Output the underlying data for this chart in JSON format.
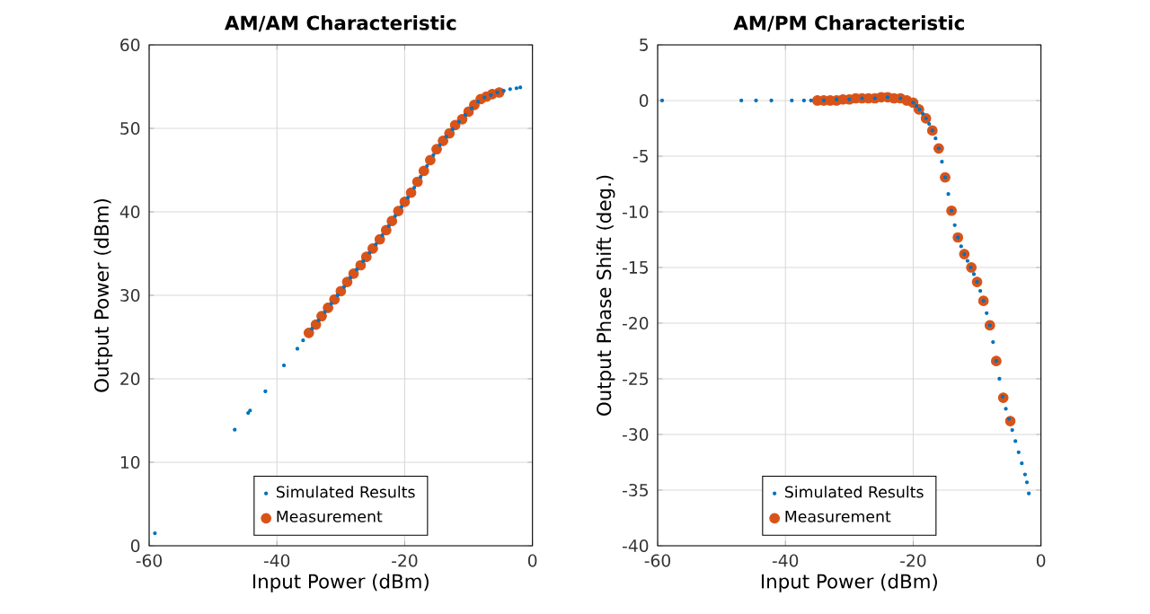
{
  "chart_data": [
    {
      "type": "scatter",
      "title": "AM/AM Characteristic",
      "xlabel": "Input Power (dBm)",
      "ylabel": "Output Power (dBm)",
      "xlim": [
        -60,
        0
      ],
      "ylim": [
        0,
        60
      ],
      "xticks": [
        -60,
        -40,
        -20,
        0
      ],
      "yticks": [
        0,
        10,
        20,
        30,
        40,
        50,
        60
      ],
      "grid": true,
      "legend": "bottom",
      "marker": "circle",
      "series": [
        {
          "name": "Simulated Results",
          "color": "#0072bd",
          "x": [
            -59.1,
            -46.6,
            -44.5,
            -44.2,
            -41.8,
            -38.9,
            -36.8,
            -35.9,
            -34.5,
            -33.5,
            -32.5,
            -31.5,
            -30.5,
            -29.5,
            -28.5,
            -27.5,
            -26.5,
            -25.5,
            -24.5,
            -23.5,
            -22.5,
            -21.5,
            -20.5,
            -19.5,
            -18.5,
            -17.5,
            -16.5,
            -15.5,
            -14.5,
            -13.5,
            -12.5,
            -11.5,
            -10.5,
            -9.5,
            -8.5,
            -7.5,
            -6.5,
            -5.5,
            -4.5,
            -3.5,
            -2.5,
            -1.9
          ],
          "values": [
            1.5,
            13.9,
            15.9,
            16.2,
            18.5,
            21.6,
            23.6,
            24.6,
            26.0,
            27.0,
            28.0,
            29.0,
            30.0,
            31.0,
            32.1,
            33.1,
            34.1,
            35.1,
            36.1,
            37.2,
            38.3,
            39.5,
            40.6,
            41.7,
            42.9,
            44.2,
            45.5,
            46.8,
            48.0,
            49.0,
            49.9,
            50.8,
            51.6,
            52.4,
            53.2,
            53.7,
            54.0,
            54.3,
            54.5,
            54.7,
            54.8,
            54.9
          ]
        },
        {
          "name": "Measurement",
          "color": "#d95319",
          "x": [
            -35.0,
            -33.9,
            -33.0,
            -32.0,
            -31.0,
            -30.0,
            -29.0,
            -28.0,
            -26.9,
            -26.0,
            -25.0,
            -23.9,
            -22.9,
            -22.0,
            -21.0,
            -20.0,
            -19.0,
            -18.0,
            -17.0,
            -16.0,
            -15.0,
            -14.0,
            -13.0,
            -12.1,
            -11.0,
            -10.0,
            -9.1,
            -8.1,
            -7.2,
            -6.3,
            -5.2
          ],
          "values": [
            25.5,
            26.5,
            27.5,
            28.5,
            29.5,
            30.5,
            31.6,
            32.6,
            33.6,
            34.6,
            35.6,
            36.7,
            37.8,
            38.9,
            40.1,
            41.2,
            42.3,
            43.6,
            44.9,
            46.2,
            47.5,
            48.5,
            49.4,
            50.4,
            51.1,
            52.0,
            52.8,
            53.5,
            53.8,
            54.1,
            54.3
          ]
        }
      ]
    },
    {
      "type": "scatter",
      "title": "AM/PM Characteristic",
      "xlabel": "Input Power (dBm)",
      "ylabel": "Output Phase Shift (deg.)",
      "xlim": [
        -60,
        0
      ],
      "ylim": [
        -40,
        5
      ],
      "xticks": [
        -60,
        -40,
        -20,
        0
      ],
      "yticks": [
        -40,
        -35,
        -30,
        -25,
        -20,
        -15,
        -10,
        -5,
        0,
        5
      ],
      "grid": true,
      "legend": "bottom",
      "marker": "circle",
      "series": [
        {
          "name": "Simulated Results",
          "color": "#0072bd",
          "x": [
            -59.3,
            -46.9,
            -44.6,
            -42.2,
            -39.0,
            -37.1,
            -36,
            -34,
            -32,
            -30,
            -28,
            -26,
            -24,
            -22,
            -20,
            -19.5,
            -19,
            -18.5,
            -18,
            -17.5,
            -17,
            -16.5,
            -16,
            -15.5,
            -15,
            -14.5,
            -14,
            -13.5,
            -13,
            -12.5,
            -12,
            -11.5,
            -11,
            -10.5,
            -10,
            -9.5,
            -9,
            -8.5,
            -8,
            -7.5,
            -7,
            -6.5,
            -6,
            -5.5,
            -5,
            -4.5,
            -4,
            -3.5,
            -3,
            -2.5,
            -2.2,
            -1.9
          ],
          "values": [
            0,
            0,
            0,
            0,
            0,
            0,
            0,
            0,
            0.1,
            0.1,
            0.2,
            0.2,
            0.3,
            0.2,
            -0.2,
            -0.5,
            -0.8,
            -1.2,
            -1.6,
            -2.1,
            -2.7,
            -3.4,
            -4.3,
            -5.5,
            -6.9,
            -8.4,
            -9.9,
            -11.2,
            -12.3,
            -13.1,
            -13.8,
            -14.4,
            -15.0,
            -15.6,
            -16.3,
            -17.1,
            -18.0,
            -19.1,
            -20.2,
            -21.7,
            -23.4,
            -25.0,
            -26.6,
            -27.7,
            -28.6,
            -29.6,
            -30.6,
            -31.6,
            -32.6,
            -33.6,
            -34.3,
            -35.3
          ]
        },
        {
          "name": "Measurement",
          "color": "#d95319",
          "x": [
            -35,
            -34,
            -33,
            -32,
            -31,
            -30,
            -29,
            -28,
            -27,
            -26,
            -25,
            -24,
            -23,
            -22,
            -21,
            -20,
            -19.1,
            -18.0,
            -17.0,
            -16.0,
            -15.0,
            -14.0,
            -13.0,
            -12.0,
            -10.9,
            -10.0,
            -9.0,
            -8.0,
            -7.0,
            -5.9,
            -4.8
          ],
          "values": [
            0,
            0,
            0,
            0,
            0.1,
            0.1,
            0.2,
            0.2,
            0.2,
            0.2,
            0.3,
            0.3,
            0.2,
            0.2,
            0,
            -0.2,
            -0.8,
            -1.6,
            -2.7,
            -4.3,
            -6.9,
            -9.9,
            -12.3,
            -13.8,
            -15.0,
            -16.3,
            -18.0,
            -20.2,
            -23.4,
            -26.7,
            -28.8
          ]
        }
      ]
    }
  ]
}
